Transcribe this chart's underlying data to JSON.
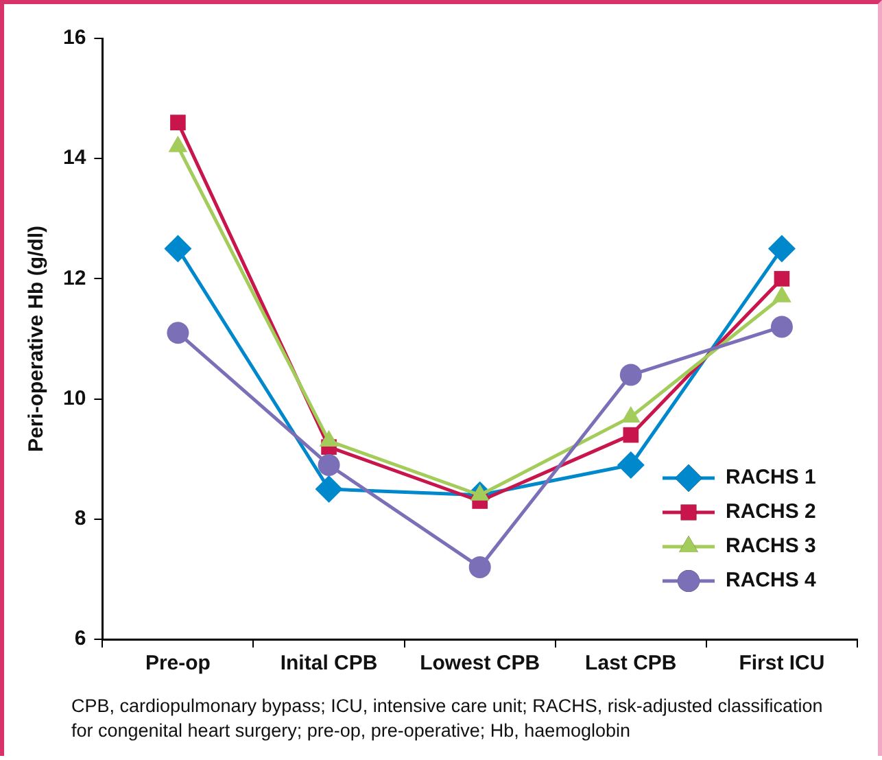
{
  "chart_data": {
    "type": "line",
    "ylabel": "Peri-operative Hb (g/dl)",
    "categories": [
      "Pre-op",
      "Inital CPB",
      "Lowest CPB",
      "Last CPB",
      "First ICU"
    ],
    "series": [
      {
        "name": "RACHS 1",
        "color": "#0088cc",
        "marker": "diamond",
        "values": [
          12.5,
          8.5,
          8.4,
          8.9,
          12.5
        ]
      },
      {
        "name": "RACHS 2",
        "color": "#c8164c",
        "marker": "square",
        "values": [
          14.6,
          9.2,
          8.3,
          9.4,
          12.0
        ]
      },
      {
        "name": "RACHS 3",
        "color": "#a3cc5a",
        "marker": "triangle",
        "values": [
          14.2,
          9.3,
          8.4,
          9.7,
          11.7
        ]
      },
      {
        "name": "RACHS 4",
        "color": "#7b70b8",
        "marker": "circle",
        "values": [
          11.1,
          8.9,
          7.2,
          10.4,
          11.2
        ]
      }
    ],
    "ylim": [
      6,
      16
    ],
    "yticks": [
      6,
      8,
      10,
      12,
      14,
      16
    ],
    "grid": false,
    "legend": "bottom right",
    "line_style": "solid",
    "annotations": [
      "CPB, cardiopulmonary bypass; ICU, intensive care unit; RACHS, risk-adjusted classification for congenital heart surgery; pre-op, pre-operative; Hb, haemoglobin"
    ]
  }
}
